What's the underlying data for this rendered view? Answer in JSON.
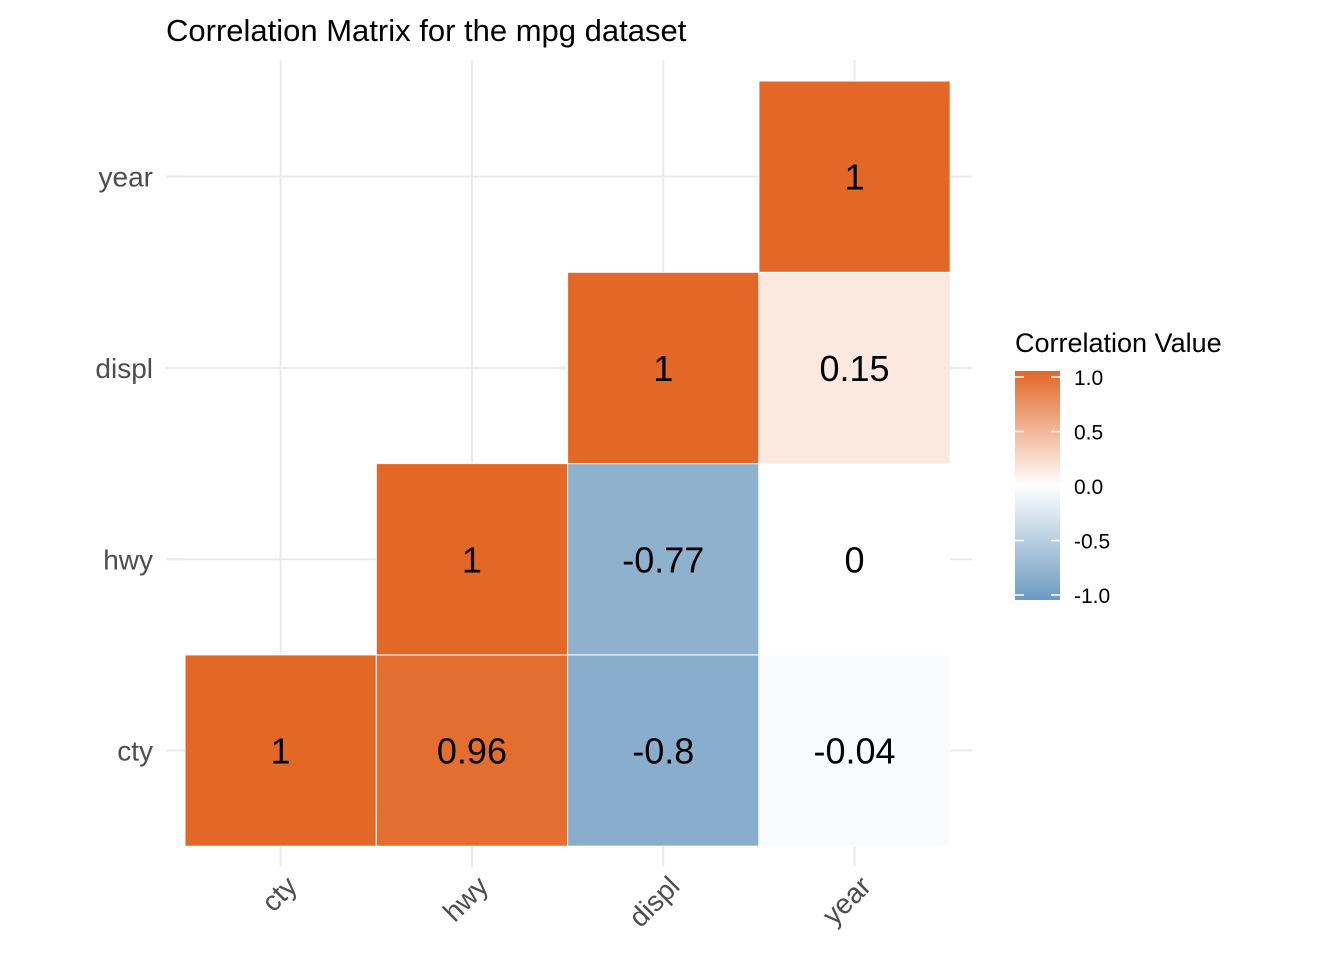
{
  "chart_data": {
    "type": "heatmap",
    "title": "Correlation Matrix for the mpg dataset",
    "xlabel": "",
    "ylabel": "",
    "variables": [
      "cty",
      "hwy",
      "displ",
      "year"
    ],
    "cells": [
      {
        "x": "cty",
        "y": "cty",
        "value": 1,
        "label": "1"
      },
      {
        "x": "hwy",
        "y": "cty",
        "value": 0.96,
        "label": "0.96"
      },
      {
        "x": "displ",
        "y": "cty",
        "value": -0.8,
        "label": "-0.8"
      },
      {
        "x": "year",
        "y": "cty",
        "value": -0.04,
        "label": "-0.04"
      },
      {
        "x": "hwy",
        "y": "hwy",
        "value": 1,
        "label": "1"
      },
      {
        "x": "displ",
        "y": "hwy",
        "value": -0.77,
        "label": "-0.77"
      },
      {
        "x": "year",
        "y": "hwy",
        "value": 0,
        "label": "0"
      },
      {
        "x": "displ",
        "y": "displ",
        "value": 1,
        "label": "1"
      },
      {
        "x": "year",
        "y": "displ",
        "value": 0.15,
        "label": "0.15"
      },
      {
        "x": "year",
        "y": "year",
        "value": 1,
        "label": "1"
      }
    ],
    "legend": {
      "title": "Correlation Value",
      "position": "right",
      "limits": [
        -1,
        1
      ],
      "ticks": [
        1.0,
        0.5,
        0.0,
        -0.5,
        -1.0
      ],
      "tick_labels": [
        "1.0",
        "0.5",
        "0.0",
        "-0.5",
        "-1.0"
      ]
    },
    "colors": {
      "high": "#E36727",
      "mid": "#FFFFFF",
      "low": "#6C9AC0"
    },
    "grid": true
  }
}
